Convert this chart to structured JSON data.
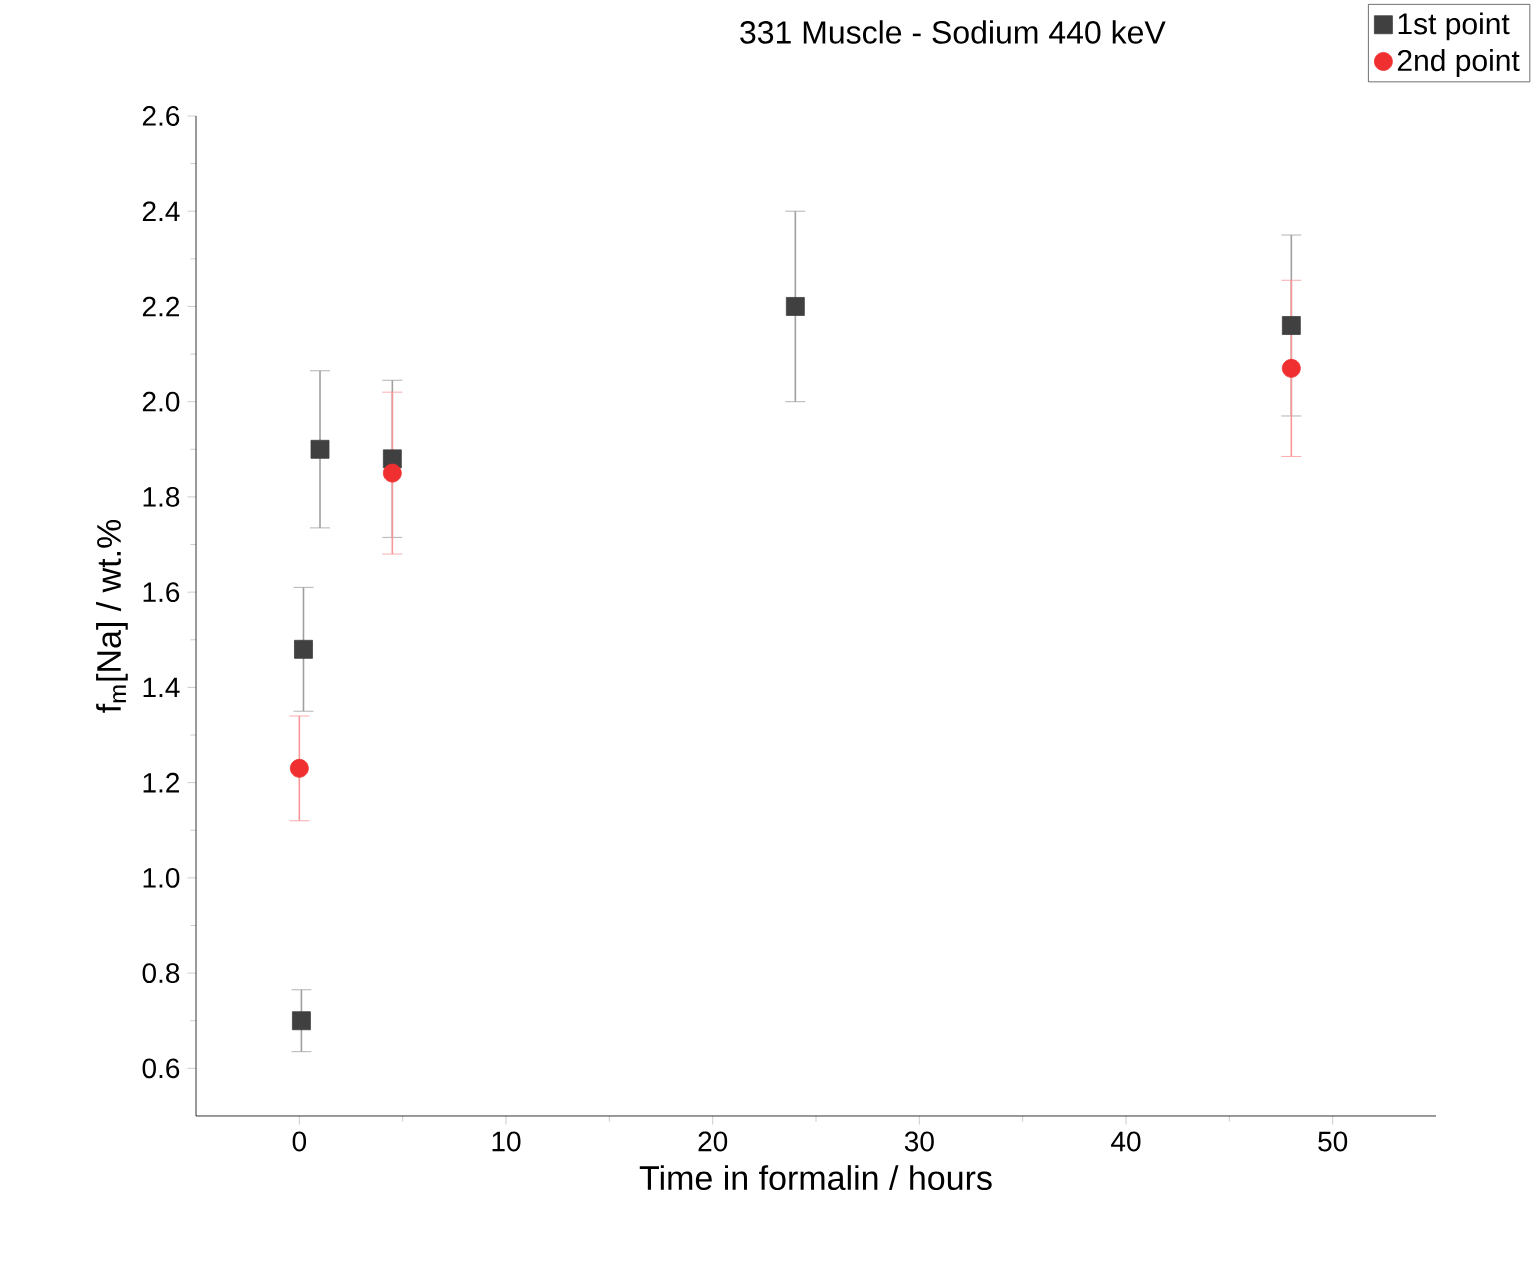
{
  "chart_data": {
    "type": "scatter",
    "title": "331 Muscle - Sodium 440 keV",
    "xlabel": "Time in formalin / hours",
    "ylabel": "f$_{m}$[Na] / wt.%",
    "xlim": [
      -5,
      55
    ],
    "xticks": [
      0,
      10,
      20,
      30,
      40,
      50
    ],
    "ylim": [
      0.5,
      2.6
    ],
    "yticks": [
      0.6,
      0.8,
      {
        "value": 1,
        "label": "1.0"
      },
      1.2,
      1.4,
      1.6,
      1.8,
      {
        "value": 2,
        "label": "2.0"
      },
      2.2,
      2.4,
      2.6
    ],
    "legend": "top right",
    "series": [
      {
        "name": "1st point",
        "color": "#404040",
        "marker": "square",
        "x": [
          0.1,
          0.2,
          1,
          4.5,
          24,
          48
        ],
        "values": [
          0.7,
          1.48,
          1.9,
          1.88,
          2.2,
          2.16
        ],
        "errors": [
          0.065,
          0.13,
          0.165,
          0.165,
          0.2,
          0.19
        ]
      },
      {
        "name": "2nd point",
        "color": "#f03030",
        "marker": "circle",
        "x": [
          0,
          4.5,
          48
        ],
        "values": [
          1.23,
          1.85,
          2.07
        ],
        "errors": [
          0.11,
          0.17,
          0.185
        ]
      }
    ]
  }
}
